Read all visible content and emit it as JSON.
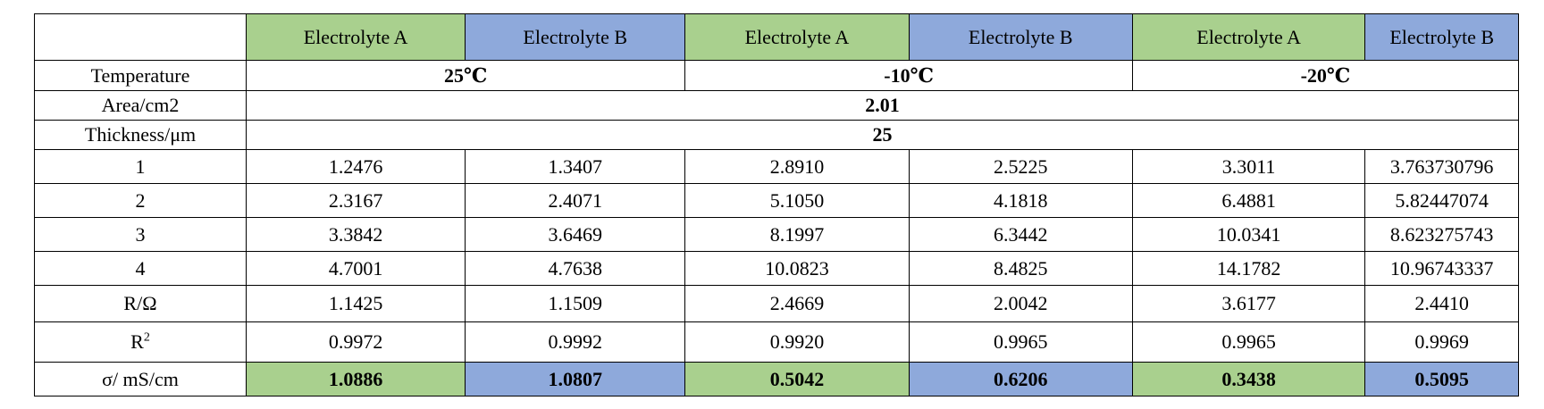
{
  "header": {
    "columns": [
      "",
      "Electrolyte A",
      "Electrolyte B",
      "Electrolyte A",
      "Electrolyte B",
      "Electrolyte A",
      "Electrolyte B"
    ]
  },
  "temperature": {
    "label": "Temperature",
    "values": [
      "25℃",
      "-10℃",
      "-20℃"
    ]
  },
  "area": {
    "label": "Area/cm2",
    "value": "2.01"
  },
  "thickness": {
    "label": "Thickness/μm",
    "value": "25"
  },
  "rows": [
    {
      "label": "1",
      "cells": [
        "1.2476",
        "1.3407",
        "2.8910",
        "2.5225",
        "3.3011",
        "3.763730796"
      ]
    },
    {
      "label": "2",
      "cells": [
        "2.3167",
        "2.4071",
        "5.1050",
        "4.1818",
        "6.4881",
        "5.82447074"
      ]
    },
    {
      "label": "3",
      "cells": [
        "3.3842",
        "3.6469",
        "8.1997",
        "6.3442",
        "10.0341",
        "8.623275743"
      ]
    },
    {
      "label": "4",
      "cells": [
        "4.7001",
        "4.7638",
        "10.0823",
        "8.4825",
        "14.1782",
        "10.96743337"
      ]
    }
  ],
  "resistance": {
    "label": "R/Ω",
    "cells": [
      "1.1425",
      "1.1509",
      "2.4669",
      "2.0042",
      "3.6177",
      "2.4410"
    ]
  },
  "r_squared": {
    "label_base": "R",
    "label_sup": "2",
    "cells": [
      "0.9972",
      "0.9992",
      "0.9920",
      "0.9965",
      "0.9965",
      "0.9969"
    ]
  },
  "conductivity": {
    "label": "σ/ mS/cm",
    "cells": [
      "1.0886",
      "1.0807",
      "0.5042",
      "0.6206",
      "0.3438",
      "0.5095"
    ]
  },
  "colors": {
    "electrolyte_a": "#a9d08e",
    "electrolyte_b": "#8ea9db",
    "border": "#000000"
  }
}
